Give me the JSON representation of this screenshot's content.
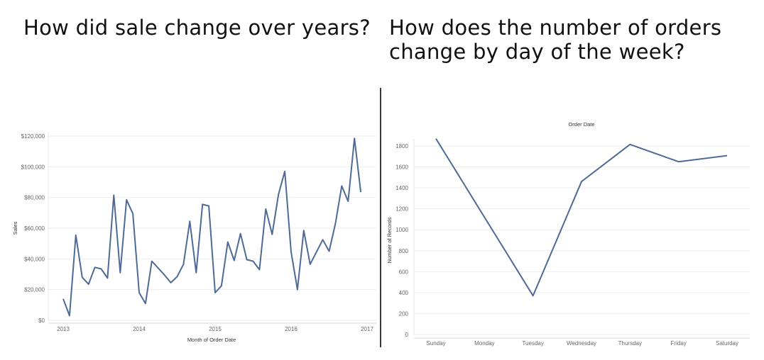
{
  "left_question": "How did sale change over years?",
  "right_question": "How does the number of orders change by day of the week?",
  "chart_data": [
    {
      "type": "line",
      "title": "",
      "xlabel": "Month of Order Date",
      "ylabel": "Sales",
      "x_ticks": [
        "2013",
        "2014",
        "2015",
        "2016",
        "2017"
      ],
      "y_ticks": [
        "$0",
        "$20,000",
        "$40,000",
        "$60,000",
        "$80,000",
        "$100,000",
        "$120,000"
      ],
      "ylim": [
        0,
        120000
      ],
      "xlim": [
        "2013-01",
        "2017-01"
      ],
      "grid": true,
      "color": "#4e6a96",
      "series": [
        {
          "x": [
            "2013-01",
            "2013-02",
            "2013-03",
            "2013-04",
            "2013-05",
            "2013-06",
            "2013-07",
            "2013-08",
            "2013-09",
            "2013-10",
            "2013-11",
            "2013-12",
            "2014-01",
            "2014-02",
            "2014-03",
            "2014-04",
            "2014-05",
            "2014-06",
            "2014-07",
            "2014-08",
            "2014-09",
            "2014-10",
            "2014-11",
            "2014-12",
            "2015-01",
            "2015-02",
            "2015-03",
            "2015-04",
            "2015-05",
            "2015-06",
            "2015-07",
            "2015-08",
            "2015-09",
            "2015-10",
            "2015-11",
            "2015-12",
            "2016-01",
            "2016-02",
            "2016-03",
            "2016-04",
            "2016-05",
            "2016-06",
            "2016-07",
            "2016-08",
            "2016-09",
            "2016-10",
            "2016-11",
            "2016-12"
          ],
          "values": [
            14000,
            3000,
            55500,
            28000,
            23500,
            34500,
            33500,
            27500,
            81500,
            31000,
            78500,
            69500,
            18000,
            11000,
            38500,
            34000,
            29500,
            24500,
            28500,
            36500,
            64500,
            31000,
            75500,
            74500,
            18000,
            22500,
            51000,
            39000,
            56500,
            39500,
            38500,
            33000,
            72500,
            56000,
            82000,
            97000,
            44500,
            20000,
            58500,
            36500,
            44500,
            52500,
            45000,
            63000,
            87500,
            77500,
            118500,
            83500
          ]
        }
      ]
    },
    {
      "type": "line",
      "title": "Order Date",
      "xlabel": "",
      "ylabel": "Number of Records",
      "categories": [
        "Sunday",
        "Monday",
        "Tuesday",
        "Wednesday",
        "Thursday",
        "Friday",
        "Saturday"
      ],
      "y_ticks": [
        "0",
        "200",
        "400",
        "600",
        "800",
        "1000",
        "1200",
        "1400",
        "1600",
        "1800"
      ],
      "ylim": [
        0,
        1800
      ],
      "grid": true,
      "color": "#4e6a96",
      "series": [
        {
          "values": [
            1870,
            1120,
            370,
            1460,
            1815,
            1650,
            1708
          ]
        }
      ]
    }
  ]
}
